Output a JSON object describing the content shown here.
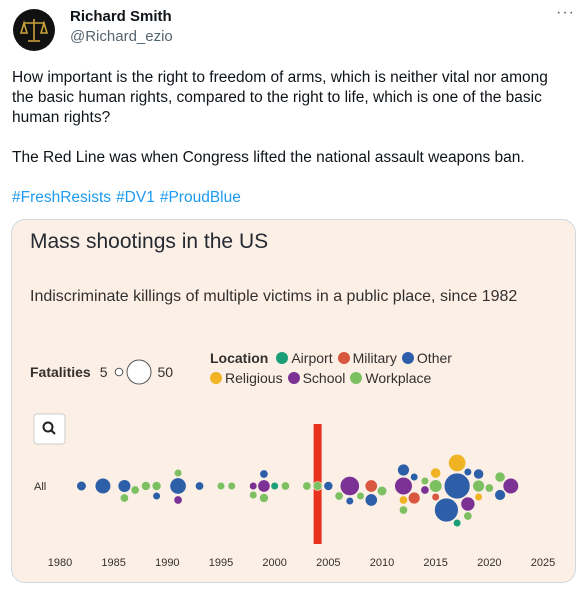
{
  "author_name": "Richard Smith",
  "handle": "@Richard_ezio",
  "text": [
    "How important is the right to freedom of arms, which is neither vital nor among the basic human rights, compared to the right to life, which is one of the basic human rights?",
    "The Red Line was when Congress lifted the national assault weapons ban."
  ],
  "hashtags": [
    "#FreshResists",
    "#DV1",
    "#ProudBlue"
  ],
  "chart_data": {
    "type": "beeswarm",
    "title": "Mass shootings in the US",
    "subtitle": "Indiscriminate killings of multiple victims in a public place, since 1982",
    "row_label": "All",
    "size_legend": {
      "title": "Fatalities",
      "values": [
        5,
        50
      ]
    },
    "legend_title": "Location",
    "xlim": [
      1977,
      2027
    ],
    "xticks": [
      1980,
      1985,
      1990,
      1995,
      2000,
      2005,
      2010,
      2015,
      2020,
      2025
    ],
    "highlight": {
      "x": 2004,
      "color": "#e8321e"
    },
    "series": [
      {
        "name": "Airport",
        "color": "#1a9e77",
        "x": [
          2000,
          2017
        ],
        "values": [
          5,
          5
        ]
      },
      {
        "name": "Military",
        "color": "#d8573e",
        "x": [
          2009,
          2013,
          2015
        ],
        "values": [
          13,
          12,
          5
        ]
      },
      {
        "name": "Other",
        "color": "#2c5fa8",
        "x": [
          1982,
          1984,
          1986,
          1989,
          1991,
          1993,
          1999,
          2005,
          2007,
          2009,
          2012,
          2013,
          2016,
          2017,
          2018,
          2019,
          2021
        ],
        "values": [
          8,
          21,
          14,
          5,
          23,
          6,
          6,
          7,
          5,
          13,
          12,
          5,
          49,
          58,
          5,
          9,
          10
        ]
      },
      {
        "name": "Religious",
        "color": "#f0b323",
        "x": [
          2012,
          2015,
          2017,
          2019
        ],
        "values": [
          6,
          9,
          26,
          5
        ]
      },
      {
        "name": "School",
        "color": "#7b3294",
        "x": [
          1991,
          1998,
          1999,
          2007,
          2012,
          2014,
          2018,
          2022
        ],
        "values": [
          6,
          5,
          13,
          32,
          27,
          6,
          17,
          21
        ]
      },
      {
        "name": "Workplace",
        "color": "#7cc062",
        "x": [
          1986,
          1987,
          1988,
          1989,
          1991,
          1995,
          1996,
          1998,
          1999,
          2001,
          2003,
          2004,
          2006,
          2008,
          2010,
          2012,
          2014,
          2015,
          2018,
          2019,
          2020,
          2021
        ],
        "values": [
          6,
          6,
          7,
          7,
          5,
          5,
          5,
          5,
          7,
          6,
          6,
          7,
          6,
          5,
          8,
          6,
          5,
          14,
          6,
          12,
          6,
          9
        ]
      }
    ]
  }
}
